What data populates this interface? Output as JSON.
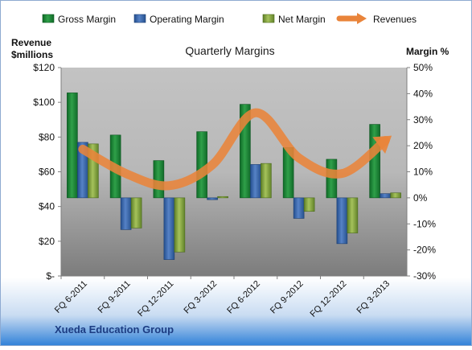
{
  "chart_data": {
    "type": "bar",
    "title": "Quarterly Margins",
    "company": "Xueda Education Group",
    "left_axis_title_line1": "Revenue",
    "left_axis_title_line2": "$millions",
    "right_axis_title": "Margin %",
    "categories": [
      "FQ 6-2011",
      "FQ 9-2011",
      "FQ 12-2011",
      "FQ 3-2012",
      "FQ 6-2012",
      "FQ 9-2012",
      "FQ 12-2012",
      "FQ 3-2013"
    ],
    "left_axis": {
      "ylim": [
        0,
        120
      ],
      "ticks": [
        0,
        20,
        40,
        60,
        80,
        100,
        120
      ],
      "tick_labels": [
        "$-",
        "$20",
        "$40",
        "$60",
        "$80",
        "$100",
        "$120"
      ]
    },
    "right_axis": {
      "ylim": [
        -30,
        50
      ],
      "ticks": [
        -30,
        -20,
        -10,
        0,
        10,
        20,
        30,
        40,
        50
      ],
      "tick_labels": [
        "-30%",
        "-20%",
        "-10%",
        "0%",
        "10%",
        "20%",
        "30%",
        "40%",
        "50%"
      ]
    },
    "legend_position": "top",
    "series": [
      {
        "name": "Gross Margin",
        "type": "bar",
        "axis": "right",
        "color": "#1e8a3a",
        "values": [
          40.3,
          24.1,
          14.3,
          25.4,
          35.9,
          19.3,
          14.8,
          28.2
        ]
      },
      {
        "name": "Operating Margin",
        "type": "bar",
        "axis": "right",
        "color": "#3b66a8",
        "values": [
          21.3,
          -12.2,
          -23.7,
          -0.7,
          12.8,
          -7.9,
          -17.6,
          1.6
        ]
      },
      {
        "name": "Net Margin",
        "type": "bar",
        "axis": "right",
        "color": "#86a83c",
        "values": [
          20.7,
          -11.6,
          -20.8,
          0.5,
          13.2,
          -5.2,
          -13.5,
          1.9
        ]
      },
      {
        "name": "Revenues",
        "type": "line",
        "axis": "left",
        "color": "#e9843a",
        "values": [
          73,
          59,
          52,
          64,
          94,
          68,
          59,
          78
        ]
      }
    ],
    "grid": false,
    "colors": {
      "plot_top": "#c3c3c3",
      "plot_bottom": "#7c7c7c",
      "bottom_band_top": "#eef4fb",
      "bottom_band_bottom": "#2f80d8",
      "border": "#8eaad1",
      "company_text": "#1c3c82"
    }
  }
}
